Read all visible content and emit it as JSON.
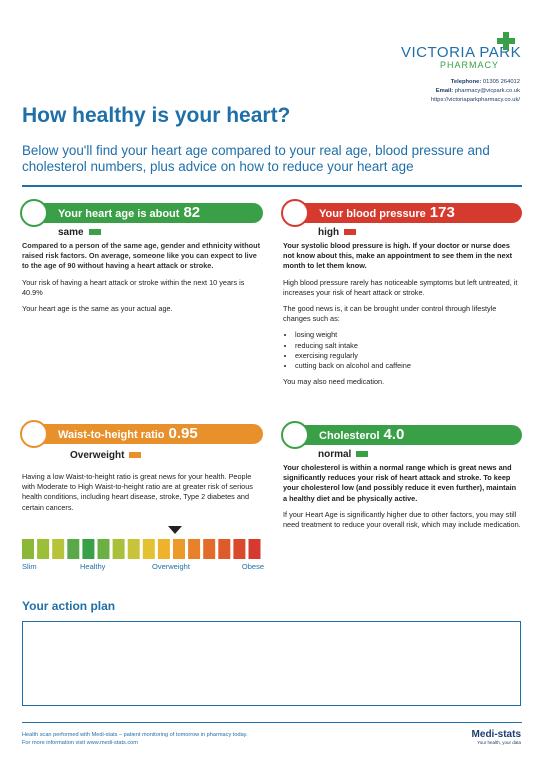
{
  "header": {
    "pharmacy_name": "VICTORIA PARK",
    "pharmacy_sub": "PHARMACY",
    "telephone_label": "Telephone:",
    "telephone": "01305 264012",
    "email_label": "Email:",
    "email": "pharmacy@vicpark.co.uk",
    "website": "https://victoriaparkpharmacy.co.uk/"
  },
  "title": "How healthy is your heart?",
  "intro": "Below you'll find your heart age compared to your real age, blood pressure and cholesterol numbers, plus advice on how to reduce your heart age",
  "heart_age": {
    "label": "Your heart age is about",
    "value": "82",
    "status": "same",
    "paragraphs": [
      "Compared to a person of the same age, gender and ethnicity without raised risk factors. On average, someone like you can expect to live to the age of 90 without having a heart attack or stroke.",
      "Your risk of having a heart attack or stroke within the next 10 years is 40.9%",
      "Your heart age is the same as your actual age."
    ]
  },
  "blood_pressure": {
    "label": "Your blood pressure",
    "value": "173",
    "status": "high",
    "paragraphs": [
      "Your systolic blood pressure is high. If your doctor or nurse does not know about this, make an appointment to see them in the next month to let them know.",
      "High blood pressure rarely has noticeable symptoms but left untreated, it increases your risk of heart attack or stroke.",
      "The good news is, it can be brought under control through lifestyle changes such as:"
    ],
    "list": [
      "losing weight",
      "reducing salt intake",
      "exercising regularly",
      "cutting back on alcohol and caffeine"
    ],
    "closing": "You may also need medication."
  },
  "waist": {
    "label": "Waist-to-height ratio",
    "value": "0.95",
    "status": "Overweight",
    "paragraph": "Having a low Waist-to-height ratio is great news for your health. People with Moderate to High Waist-to-height ratio are at greater risk of serious health conditions, including heart disease, stroke, Type 2 diabetes and certain cancers.",
    "scale_labels": [
      "Slim",
      "Healthy",
      "Overweight",
      "Obese"
    ]
  },
  "cholesterol": {
    "label": "Cholesterol",
    "value": "4.0",
    "status": "normal",
    "paragraphs": [
      "Your cholesterol is within a normal range which is great news and significantly reduces your risk of heart attack and stroke. To keep your cholesterol low (and possibly reduce it even further), maintain a healthy diet and be physically active.",
      "If your Heart Age is significantly higher due to other factors, you may still need treatment to reduce your overall risk, which may include medication."
    ]
  },
  "action_plan": {
    "title": "Your action plan"
  },
  "footer": {
    "lines": [
      "Health scan performed with Medi-stats – patient monitoring of tomorrow in pharmacy today.",
      "For more information visit www.medi-stats.com"
    ],
    "logo": "Medi-stats",
    "tagline": "Your health, your data"
  }
}
